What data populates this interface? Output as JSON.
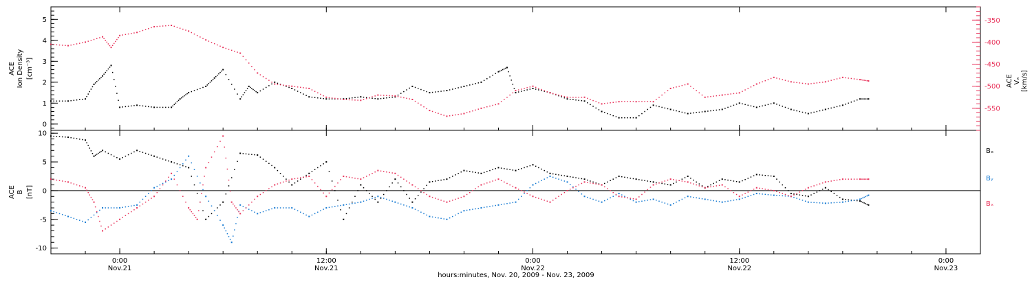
{
  "x_axis": {
    "title": "hours:minutes, Nov. 20, 2009 - Nov. 23, 2009",
    "ticks": [
      {
        "hours": 24,
        "time": "0:00",
        "date": "Nov.21"
      },
      {
        "hours": 36,
        "time": "12:00",
        "date": "Nov.21"
      },
      {
        "hours": 48,
        "time": "0:00",
        "date": "Nov.22"
      },
      {
        "hours": 60,
        "time": "12:00",
        "date": "Nov.22"
      },
      {
        "hours": 72,
        "time": "0:00",
        "date": "Nov.23"
      }
    ]
  },
  "colors": {
    "black": "#000000",
    "pink": "#e8325a",
    "blue": "#1479d2"
  },
  "chart_data": [
    {
      "type": "scatter",
      "xlim_hours": [
        20,
        74
      ],
      "left_axis": {
        "label_lines": [
          "ACE",
          "Ion Density"
        ],
        "unit": "[cm⁻³]",
        "ylim": [
          -0.3,
          5.6
        ],
        "ticks": [
          0,
          1,
          2,
          3,
          4,
          5
        ]
      },
      "right_axis": {
        "label_lines": [
          "ACE",
          "Vₓ"
        ],
        "unit": "[km/s]",
        "ylim": [
          -600,
          -320
        ],
        "ticks": [
          -550,
          -500,
          -450,
          -400,
          -350
        ]
      },
      "series": [
        {
          "key": "density",
          "axis": "left",
          "color": "#000000",
          "x": [
            20,
            21,
            22,
            22.5,
            23,
            23.5,
            24,
            25,
            26,
            27,
            27.5,
            28,
            29,
            29.5,
            30,
            31,
            31.5,
            32,
            33,
            34,
            35,
            36,
            37,
            38,
            39,
            40,
            41,
            42,
            43,
            44,
            45,
            46,
            46.5,
            47,
            48,
            49,
            50,
            51,
            52,
            53,
            54,
            55,
            56,
            57,
            58,
            59,
            60,
            61,
            62,
            63,
            64,
            65,
            66,
            67,
            67.5
          ],
          "y": [
            1.1,
            1.1,
            1.2,
            1.9,
            2.3,
            2.8,
            0.8,
            0.9,
            0.8,
            0.8,
            1.2,
            1.5,
            1.8,
            2.2,
            2.6,
            1.2,
            1.8,
            1.5,
            2.0,
            1.7,
            1.3,
            1.2,
            1.2,
            1.3,
            1.2,
            1.3,
            1.8,
            1.5,
            1.6,
            1.8,
            2.0,
            2.5,
            2.7,
            1.5,
            1.7,
            1.5,
            1.2,
            1.1,
            0.6,
            0.3,
            0.3,
            0.9,
            0.7,
            0.5,
            0.6,
            0.7,
            1.0,
            0.8,
            1.0,
            0.7,
            0.5,
            0.7,
            0.9,
            1.2,
            1.2
          ]
        },
        {
          "key": "vx",
          "axis": "right",
          "color": "#e8325a",
          "x": [
            20,
            21,
            22,
            23,
            23.5,
            24,
            25,
            26,
            27,
            28,
            29,
            30,
            31,
            32,
            33,
            34,
            35,
            36,
            37,
            38,
            39,
            40,
            41,
            42,
            43,
            44,
            45,
            46,
            47,
            48,
            49,
            50,
            51,
            52,
            53,
            54,
            55,
            56,
            57,
            58,
            59,
            60,
            61,
            62,
            63,
            64,
            65,
            66,
            67,
            67.5
          ],
          "y": [
            -405,
            -408,
            -400,
            -388,
            -412,
            -385,
            -378,
            -365,
            -362,
            -375,
            -395,
            -412,
            -425,
            -470,
            -495,
            -500,
            -505,
            -525,
            -530,
            -532,
            -520,
            -522,
            -530,
            -555,
            -568,
            -562,
            -550,
            -540,
            -510,
            -500,
            -515,
            -525,
            -525,
            -540,
            -535,
            -535,
            -535,
            -505,
            -495,
            -525,
            -520,
            -515,
            -495,
            -480,
            -490,
            -495,
            -490,
            -480,
            -485,
            -488
          ]
        }
      ]
    },
    {
      "type": "scatter",
      "xlim_hours": [
        20,
        74
      ],
      "left_axis": {
        "label_lines": [
          "ACE",
          "B"
        ],
        "unit": "[nT]",
        "ylim": [
          -11,
          10.5
        ],
        "ticks": [
          -10,
          -5,
          0,
          5,
          10
        ]
      },
      "zero_line": true,
      "series": [
        {
          "name": "Bₓ",
          "key": "bx",
          "color": "#000000",
          "x": [
            20,
            21,
            22,
            22.5,
            23,
            24,
            25,
            26,
            27,
            28,
            29,
            30,
            31,
            32,
            33,
            34,
            35,
            36,
            37,
            38,
            39,
            40,
            41,
            42,
            43,
            44,
            45,
            46,
            47,
            48,
            49,
            50,
            51,
            52,
            53,
            54,
            55,
            56,
            57,
            58,
            59,
            60,
            61,
            62,
            63,
            64,
            65,
            66,
            67,
            67.5
          ],
          "y": [
            9.5,
            9.3,
            8.8,
            6.0,
            7.0,
            5.5,
            7.0,
            6.0,
            5.0,
            4.0,
            -5.0,
            -2.0,
            6.5,
            6.2,
            4.0,
            1.0,
            3.0,
            5.0,
            -5.0,
            1.0,
            -2.0,
            2.0,
            -2.0,
            1.5,
            2.0,
            3.5,
            3.0,
            4.0,
            3.5,
            4.5,
            3.0,
            2.5,
            2.0,
            1.0,
            2.5,
            2.0,
            1.5,
            1.0,
            2.5,
            0.5,
            2.0,
            1.5,
            2.8,
            2.5,
            -0.5,
            -1.0,
            0.5,
            -1.5,
            -1.8,
            -2.5
          ]
        },
        {
          "name": "Bᵧ",
          "key": "by",
          "color": "#1479d2",
          "x": [
            20,
            21,
            22,
            23,
            24,
            25,
            26,
            27,
            28,
            29,
            30,
            30.5,
            31,
            32,
            33,
            34,
            35,
            36,
            37,
            38,
            39,
            40,
            41,
            42,
            43,
            44,
            45,
            46,
            47,
            48,
            49,
            50,
            51,
            52,
            53,
            54,
            55,
            56,
            57,
            58,
            59,
            60,
            61,
            62,
            63,
            64,
            65,
            66,
            67,
            67.5
          ],
          "y": [
            -3.5,
            -4.5,
            -5.5,
            -3.0,
            -3.0,
            -2.5,
            0.5,
            2.0,
            6.0,
            -1.0,
            -6.0,
            -9.0,
            -2.5,
            -4.0,
            -3.0,
            -3.0,
            -4.5,
            -3.0,
            -2.5,
            -2.0,
            -1.0,
            -2.0,
            -3.0,
            -4.5,
            -5.0,
            -3.5,
            -3.0,
            -2.5,
            -2.0,
            1.0,
            2.5,
            1.5,
            -1.0,
            -2.0,
            -0.5,
            -2.0,
            -1.5,
            -2.5,
            -1.0,
            -1.5,
            -2.0,
            -1.5,
            -0.5,
            -0.8,
            -1.0,
            -2.0,
            -2.2,
            -2.0,
            -1.5,
            -0.8
          ]
        },
        {
          "name": "Bₓ",
          "key": "bz",
          "color": "#e8325a",
          "x": [
            20,
            21,
            22,
            22.5,
            23,
            24,
            25,
            26,
            27,
            28,
            28.5,
            29,
            30,
            30.5,
            31,
            32,
            33,
            34,
            35,
            36,
            37,
            38,
            39,
            40,
            41,
            42,
            43,
            44,
            45,
            46,
            47,
            48,
            49,
            50,
            51,
            52,
            53,
            54,
            55,
            56,
            57,
            58,
            59,
            60,
            61,
            62,
            63,
            64,
            65,
            66,
            67,
            67.5
          ],
          "y": [
            2.0,
            1.5,
            0.5,
            -2.0,
            -7.0,
            -5.0,
            -3.0,
            -1.0,
            3.0,
            -3.0,
            -5.0,
            4.0,
            9.5,
            -2.0,
            -4.0,
            -1.0,
            1.0,
            2.0,
            2.5,
            -1.0,
            2.5,
            2.0,
            3.5,
            3.0,
            1.0,
            -1.0,
            -2.0,
            -1.0,
            1.0,
            2.0,
            0.5,
            -1.0,
            -2.0,
            0.0,
            1.5,
            1.0,
            -1.0,
            -1.5,
            1.0,
            2.0,
            1.5,
            0.5,
            1.0,
            -1.0,
            0.5,
            0.0,
            -1.0,
            0.5,
            1.5,
            2.0,
            2.0,
            2.0
          ]
        }
      ]
    }
  ]
}
